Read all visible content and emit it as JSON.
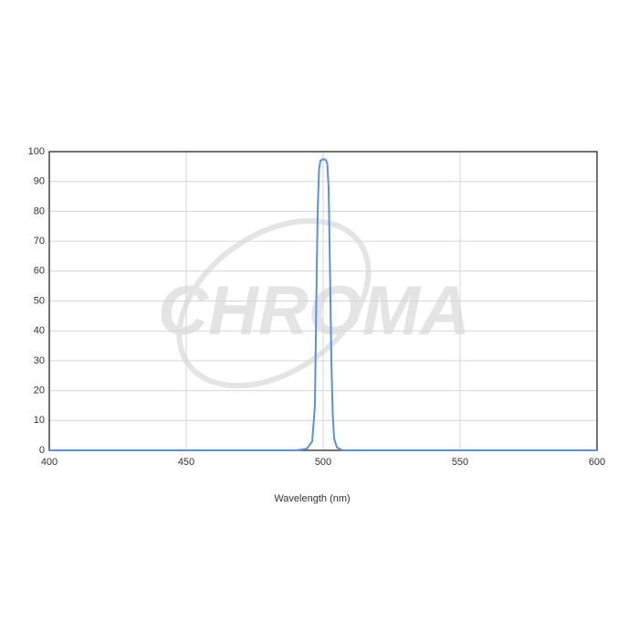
{
  "chart_data": {
    "type": "line",
    "watermark": "CHROMA",
    "x_label": "Wavelength (nm)",
    "x": [
      400,
      490,
      494,
      496,
      497,
      497.5,
      498,
      498.5,
      499,
      500,
      501,
      501.5,
      502,
      502.5,
      503,
      503.5,
      504,
      505,
      507,
      600
    ],
    "series": [
      {
        "color": "#5b8fe0",
        "values": [
          0,
          0,
          0.5,
          3,
          15,
          50,
          80,
          94,
          97,
          97.5,
          97.2,
          96,
          88,
          60,
          30,
          12,
          4,
          1,
          0,
          0
        ]
      }
    ],
    "xlim": [
      400,
      600
    ],
    "xticks": [
      400,
      450,
      500,
      550,
      600
    ],
    "ylim": [
      0,
      100
    ],
    "yticks": [
      0,
      10,
      20,
      30,
      40,
      50,
      60,
      70,
      80,
      90,
      100
    ],
    "grid": true
  }
}
